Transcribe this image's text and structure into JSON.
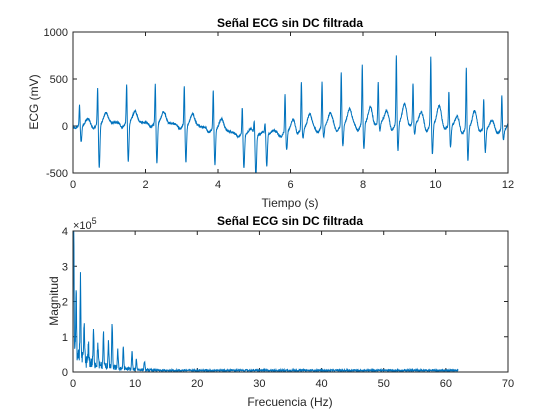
{
  "chart_data": [
    {
      "type": "line",
      "title": "Señal ECG sin DC filtrada",
      "xlabel": "Tiempo (s)",
      "ylabel": "ECG (mV)",
      "xlim": [
        0,
        12
      ],
      "ylim": [
        -500,
        1000
      ],
      "xticks": [
        "0",
        "2",
        "4",
        "6",
        "8",
        "10",
        "12"
      ],
      "yticks": [
        "-500",
        "0",
        "500",
        "1000"
      ],
      "grid": false,
      "line_color": "#0072BD",
      "beats": [
        {
          "t": 0.18,
          "r": 220,
          "s": -180
        },
        {
          "t": 0.68,
          "r": 400,
          "s": -470
        },
        {
          "t": 1.48,
          "r": 420,
          "s": -420
        },
        {
          "t": 2.27,
          "r": 430,
          "s": -430
        },
        {
          "t": 3.07,
          "r": 430,
          "s": -400
        },
        {
          "t": 3.87,
          "r": 420,
          "s": -380
        },
        {
          "t": 4.67,
          "r": 300,
          "s": -360
        },
        {
          "t": 5.0,
          "r": 150,
          "s": -460
        },
        {
          "t": 5.3,
          "r": 110,
          "s": -340
        },
        {
          "t": 5.85,
          "r": 410,
          "s": -200
        },
        {
          "t": 6.3,
          "r": 510,
          "s": -100
        },
        {
          "t": 6.87,
          "r": 480,
          "s": -120
        },
        {
          "t": 7.4,
          "r": 570,
          "s": -230
        },
        {
          "t": 7.98,
          "r": 630,
          "s": -280
        },
        {
          "t": 8.42,
          "r": 430,
          "s": -90
        },
        {
          "t": 8.92,
          "r": 730,
          "s": -300
        },
        {
          "t": 9.38,
          "r": 430,
          "s": -120
        },
        {
          "t": 9.87,
          "r": 730,
          "s": -320
        },
        {
          "t": 10.37,
          "r": 380,
          "s": -220
        },
        {
          "t": 10.85,
          "r": 650,
          "s": -350
        },
        {
          "t": 11.33,
          "r": 330,
          "s": -250
        },
        {
          "t": 11.83,
          "r": 370,
          "s": -110
        }
      ]
    },
    {
      "type": "line",
      "title": "Señal ECG sin DC filtrada",
      "xlabel": "Frecuencia (Hz)",
      "ylabel": "Magnitud",
      "scale_label": "×10",
      "scale_exp": "5",
      "xlim": [
        0,
        70
      ],
      "ylim": [
        0,
        4
      ],
      "xticks": [
        "0",
        "10",
        "20",
        "30",
        "40",
        "50",
        "60",
        "70"
      ],
      "yticks": [
        "0",
        "1",
        "2",
        "3",
        "4"
      ],
      "grid": false,
      "line_color": "#0072BD",
      "x_end": 62,
      "peaks": [
        {
          "f": 0.1,
          "m": 3.9
        },
        {
          "f": 0.5,
          "m": 1.9
        },
        {
          "f": 1.2,
          "m": 2.3
        },
        {
          "f": 1.8,
          "m": 1.0
        },
        {
          "f": 2.5,
          "m": 0.5
        },
        {
          "f": 3.3,
          "m": 0.9
        },
        {
          "f": 4.0,
          "m": 0.6
        },
        {
          "f": 4.9,
          "m": 0.95
        },
        {
          "f": 5.7,
          "m": 0.7
        },
        {
          "f": 6.3,
          "m": 1.25
        },
        {
          "f": 7.2,
          "m": 0.5
        },
        {
          "f": 8.1,
          "m": 0.6
        },
        {
          "f": 9.5,
          "m": 0.5
        },
        {
          "f": 10.2,
          "m": 0.3
        },
        {
          "f": 11.5,
          "m": 0.25
        }
      ]
    }
  ]
}
